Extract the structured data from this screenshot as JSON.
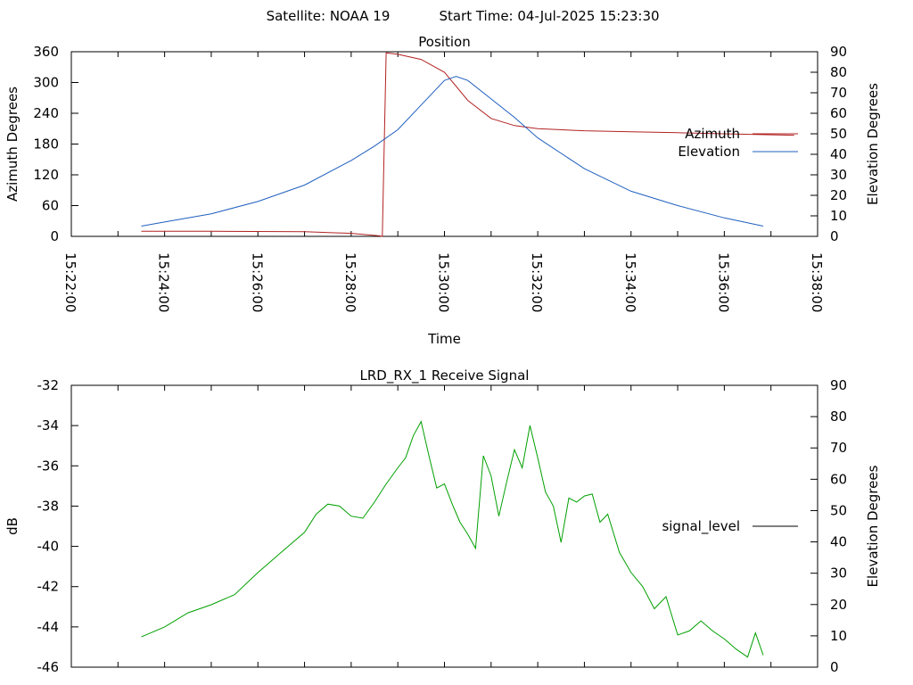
{
  "header": {
    "satellite_label": "Satellite: NOAA 19",
    "start_time_label": "Start Time: 04-Jul-2025 15:23:30"
  },
  "colors": {
    "azimuth": "#b22222",
    "elevation": "#1f5fbf",
    "signal": "#00a000",
    "axis": "#000000"
  },
  "chart_data": [
    {
      "type": "line",
      "title": "Position",
      "xlabel": "Time",
      "ylabel": "Azimuth Degrees",
      "y2label": "Elevation Degrees",
      "xlim": [
        "15:22:00",
        "15:38:00"
      ],
      "ylim": [
        0,
        360
      ],
      "y2lim": [
        0,
        90
      ],
      "x_ticks": [
        "15:22:00",
        "15:24:00",
        "15:26:00",
        "15:28:00",
        "15:30:00",
        "15:32:00",
        "15:34:00",
        "15:36:00",
        "15:38:00"
      ],
      "y_ticks": [
        0,
        60,
        120,
        180,
        240,
        300,
        360
      ],
      "y2_ticks": [
        0,
        10,
        20,
        30,
        40,
        50,
        60,
        70,
        80,
        90
      ],
      "legend_position": "right",
      "series": [
        {
          "name": "Azimuth",
          "axis": "y",
          "x": [
            "15:23:30",
            "15:25:00",
            "15:27:00",
            "15:28:00",
            "15:28:36",
            "15:28:40",
            "15:28:45",
            "15:29:00",
            "15:29:30",
            "15:30:00",
            "15:30:30",
            "15:31:00",
            "15:31:30",
            "15:32:00",
            "15:33:00",
            "15:34:00",
            "15:35:00",
            "15:36:00",
            "15:37:00",
            "15:37:30"
          ],
          "values": [
            10,
            10,
            9,
            6,
            1,
            0,
            358,
            355,
            345,
            320,
            265,
            230,
            216,
            210,
            206,
            204,
            202,
            200,
            198,
            197
          ]
        },
        {
          "name": "Elevation",
          "axis": "y2",
          "x": [
            "15:23:30",
            "15:24:00",
            "15:25:00",
            "15:26:00",
            "15:27:00",
            "15:28:00",
            "15:28:30",
            "15:29:00",
            "15:29:30",
            "15:30:00",
            "15:30:15",
            "15:30:30",
            "15:31:00",
            "15:31:30",
            "15:32:00",
            "15:33:00",
            "15:34:00",
            "15:35:00",
            "15:36:00",
            "15:36:50"
          ],
          "values": [
            5,
            7,
            11,
            17,
            25,
            37,
            44,
            52,
            64,
            76,
            78,
            76,
            67,
            58,
            48,
            33,
            22,
            15,
            9,
            5
          ]
        }
      ]
    },
    {
      "type": "line",
      "title": "LRD_RX_1 Receive Signal",
      "ylabel": "dB",
      "y2label": "Elevation Degrees",
      "xlim": [
        "15:22:00",
        "15:38:00"
      ],
      "ylim": [
        -46,
        -32
      ],
      "y2lim": [
        0,
        90
      ],
      "y_ticks": [
        -46,
        -44,
        -42,
        -40,
        -38,
        -36,
        -34,
        -32
      ],
      "y2_ticks": [
        0,
        10,
        20,
        30,
        40,
        50,
        60,
        70,
        80,
        90
      ],
      "legend_position": "right",
      "series": [
        {
          "name": "signal_level",
          "axis": "y",
          "x": [
            "15:23:30",
            "15:24:00",
            "15:24:30",
            "15:25:00",
            "15:25:30",
            "15:26:00",
            "15:26:30",
            "15:27:00",
            "15:27:15",
            "15:27:30",
            "15:27:45",
            "15:28:00",
            "15:28:15",
            "15:28:30",
            "15:28:45",
            "15:29:00",
            "15:29:10",
            "15:29:20",
            "15:29:30",
            "15:29:40",
            "15:29:50",
            "15:30:00",
            "15:30:10",
            "15:30:20",
            "15:30:30",
            "15:30:40",
            "15:30:50",
            "15:31:00",
            "15:31:10",
            "15:31:20",
            "15:31:30",
            "15:31:40",
            "15:31:50",
            "15:32:00",
            "15:32:10",
            "15:32:20",
            "15:32:30",
            "15:32:40",
            "15:32:50",
            "15:33:00",
            "15:33:10",
            "15:33:20",
            "15:33:30",
            "15:33:45",
            "15:34:00",
            "15:34:15",
            "15:34:30",
            "15:34:45",
            "15:35:00",
            "15:35:15",
            "15:35:30",
            "15:35:45",
            "15:36:00",
            "15:36:15",
            "15:36:30",
            "15:36:40",
            "15:36:50"
          ],
          "values": [
            -44.5,
            -44.0,
            -43.3,
            -42.9,
            -42.4,
            -41.3,
            -40.3,
            -39.3,
            -38.4,
            -37.9,
            -38.0,
            -38.5,
            -38.6,
            -37.8,
            -36.9,
            -36.1,
            -35.6,
            -34.5,
            -33.8,
            -35.5,
            -37.1,
            -36.9,
            -37.9,
            -38.8,
            -39.4,
            -40.1,
            -35.5,
            -36.5,
            -38.5,
            -36.8,
            -35.2,
            -36.1,
            -34.0,
            -35.6,
            -37.3,
            -38.0,
            -39.8,
            -37.6,
            -37.8,
            -37.5,
            -37.4,
            -38.8,
            -38.4,
            -40.3,
            -41.3,
            -42.0,
            -43.1,
            -42.5,
            -44.4,
            -44.2,
            -43.7,
            -44.2,
            -44.6,
            -45.1,
            -45.5,
            -44.3,
            -45.4
          ]
        }
      ]
    }
  ]
}
